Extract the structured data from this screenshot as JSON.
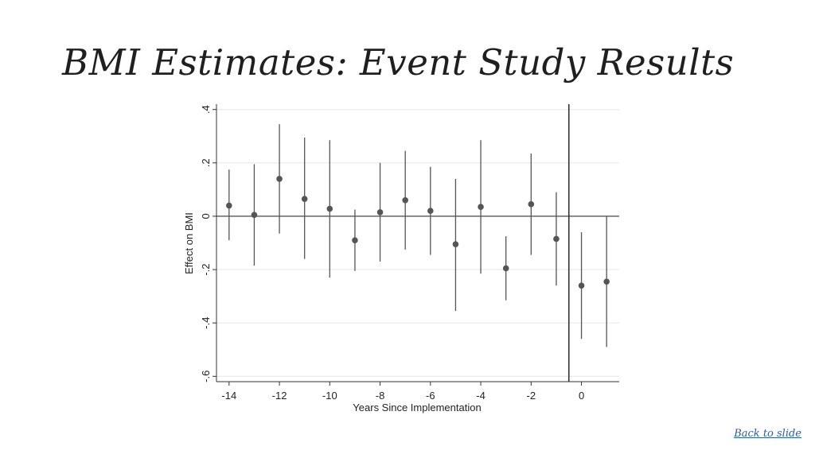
{
  "slide": {
    "title": "BMI Estimates: Event Study Results",
    "back_link": "Back to slide"
  },
  "chart_data": {
    "type": "scatter",
    "xlabel": "Years Since Implementation",
    "ylabel": "Effect on BMI",
    "xlim": [
      -14.5,
      1.5
    ],
    "ylim": [
      -0.62,
      0.42
    ],
    "x_ticks": [
      -14,
      -12,
      -10,
      -8,
      -6,
      -4,
      -2,
      0
    ],
    "y_ticks": [
      -0.6,
      -0.4,
      -0.2,
      0,
      0.2,
      0.4
    ],
    "y_tick_labels": [
      "-.6",
      "-.4",
      "-.2",
      "0",
      ".2",
      ".4"
    ],
    "grid": true,
    "reference_lines": {
      "horizontal_y": 0,
      "vertical_x": -0.5
    },
    "colors": {
      "marker": "#555555",
      "axis": "#333333",
      "grid": "#e6e6e6"
    },
    "points": [
      {
        "x": -14,
        "y": 0.04,
        "lo": -0.09,
        "hi": 0.175
      },
      {
        "x": -13,
        "y": 0.005,
        "lo": -0.185,
        "hi": 0.195
      },
      {
        "x": -12,
        "y": 0.14,
        "lo": -0.065,
        "hi": 0.345
      },
      {
        "x": -11,
        "y": 0.065,
        "lo": -0.16,
        "hi": 0.295
      },
      {
        "x": -10,
        "y": 0.028,
        "lo": -0.23,
        "hi": 0.285
      },
      {
        "x": -9,
        "y": -0.09,
        "lo": -0.205,
        "hi": 0.025
      },
      {
        "x": -8,
        "y": 0.015,
        "lo": -0.17,
        "hi": 0.2
      },
      {
        "x": -7,
        "y": 0.06,
        "lo": -0.125,
        "hi": 0.245
      },
      {
        "x": -6,
        "y": 0.02,
        "lo": -0.145,
        "hi": 0.185
      },
      {
        "x": -5,
        "y": -0.105,
        "lo": -0.355,
        "hi": 0.14
      },
      {
        "x": -4,
        "y": 0.035,
        "lo": -0.215,
        "hi": 0.285
      },
      {
        "x": -3,
        "y": -0.195,
        "lo": -0.315,
        "hi": -0.075
      },
      {
        "x": -2,
        "y": 0.045,
        "lo": -0.145,
        "hi": 0.235
      },
      {
        "x": -1,
        "y": -0.085,
        "lo": -0.26,
        "hi": 0.09
      },
      {
        "x": 0,
        "y": -0.26,
        "lo": -0.46,
        "hi": -0.06
      },
      {
        "x": 1,
        "y": -0.245,
        "lo": -0.49,
        "hi": 0.0
      }
    ]
  }
}
